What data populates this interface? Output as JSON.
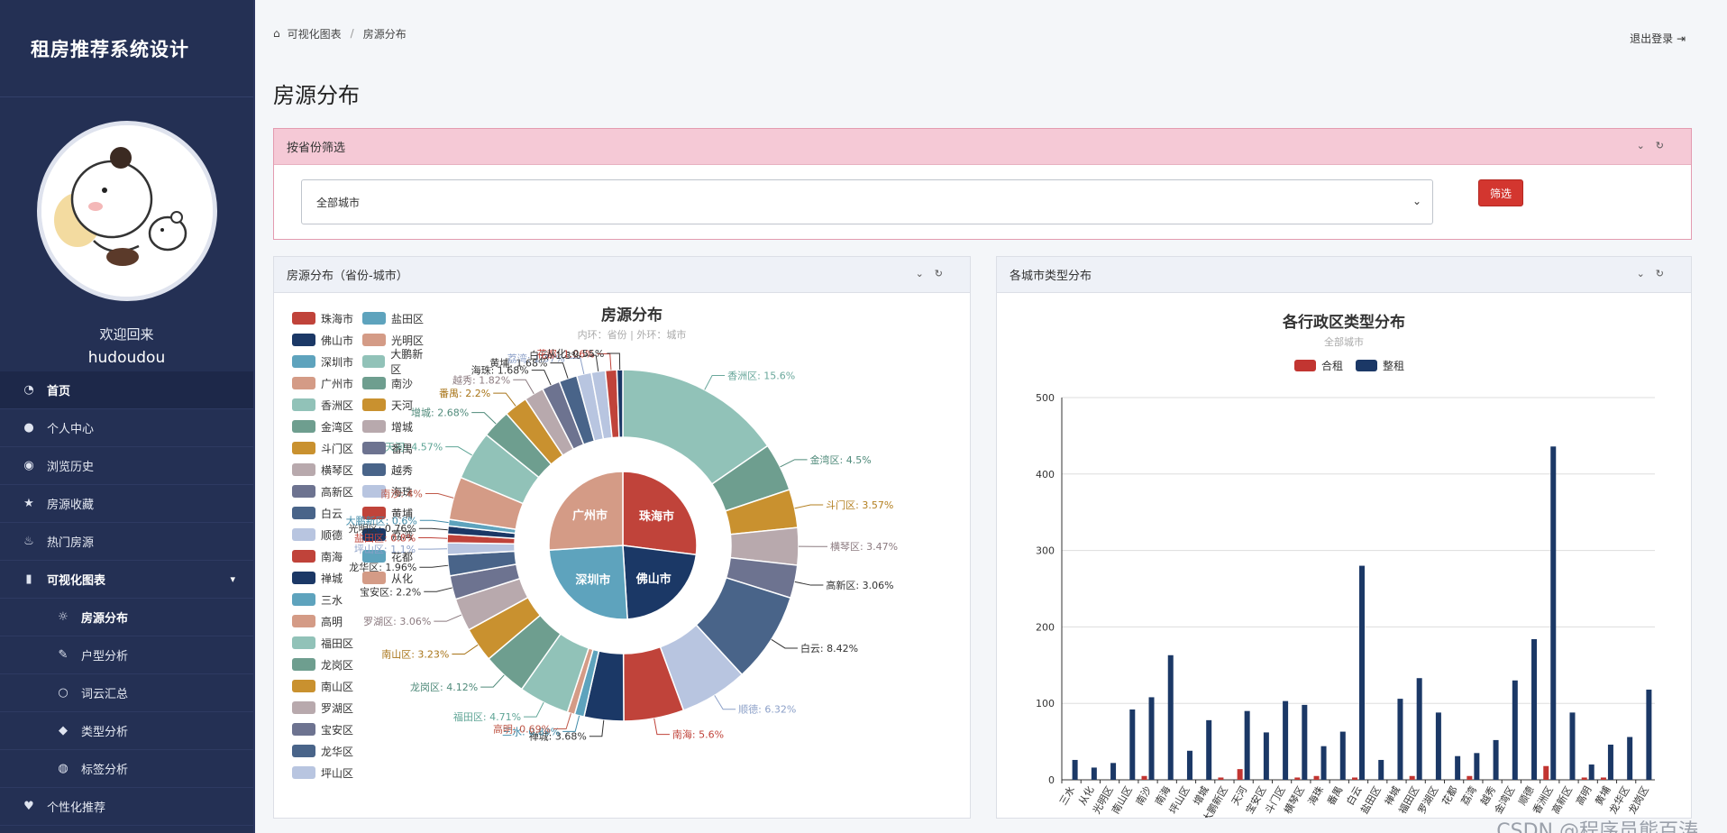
{
  "sidebar": {
    "brand": "租房推荐系统设计",
    "welcome": "欢迎回来",
    "username": "hudoudou",
    "menu": [
      {
        "label": "首页",
        "icon": "dashboard-icon"
      },
      {
        "label": "个人中心",
        "icon": "user-icon"
      },
      {
        "label": "浏览历史",
        "icon": "eye-icon"
      },
      {
        "label": "房源收藏",
        "icon": "star-icon"
      },
      {
        "label": "热门房源",
        "icon": "fire-icon"
      },
      {
        "label": "可视化图表",
        "icon": "bar-chart-icon"
      },
      {
        "label": "房源分布",
        "icon": "sun-icon"
      },
      {
        "label": "户型分析",
        "icon": "feather-icon"
      },
      {
        "label": "词云汇总",
        "icon": "bulb-icon"
      },
      {
        "label": "类型分析",
        "icon": "graduation-icon"
      },
      {
        "label": "标签分析",
        "icon": "globe-icon"
      },
      {
        "label": "个性化推荐",
        "icon": "heart-icon"
      }
    ]
  },
  "header": {
    "breadcrumb_1": "可视化图表",
    "breadcrumb_sep": "/",
    "breadcrumb_2": "房源分布",
    "logout": "退出登录",
    "page_title": "房源分布"
  },
  "filter": {
    "title": "按省份筛选",
    "select_value": "全部城市",
    "button": "筛选"
  },
  "cards": {
    "pie_title": "房源分布（省份-城市）",
    "bar_title": "各城市类型分布"
  },
  "colors": {
    "accent": "#d3362f",
    "sidebar": "#243054",
    "hezu": "#c23531",
    "zhengzu": "#1b3866"
  },
  "chart_data": [
    {
      "type": "pie",
      "title": "房源分布",
      "subtitle": "内环：省份 | 外环：城市",
      "inner": [
        {
          "name": "珠海市",
          "color": "#c0433a",
          "value": 27
        },
        {
          "name": "佛山市",
          "color": "#1b3866",
          "value": 22
        },
        {
          "name": "深圳市",
          "color": "#5ea3bd",
          "value": 25
        },
        {
          "name": "广州市",
          "color": "#d49b86",
          "value": 26
        }
      ],
      "outer": [
        {
          "name": "香洲区",
          "value": 15.6,
          "label": "香洲区: 15.6%",
          "color": "#91c2b8",
          "lcolor": "#6aa89c",
          "side": "r"
        },
        {
          "name": "金湾区",
          "value": 4.5,
          "label": "金湾区: 4.5%",
          "color": "#6e9e8f",
          "lcolor": "#4f8a7a",
          "side": "r"
        },
        {
          "name": "斗门区",
          "value": 3.57,
          "label": "斗门区: 3.57%",
          "color": "#c9912f",
          "lcolor": "#b37f1f",
          "side": "r"
        },
        {
          "name": "横琴区",
          "value": 3.47,
          "label": "横琴区: 3.47%",
          "color": "#b8a9ad",
          "lcolor": "#8c7b80",
          "side": "r"
        },
        {
          "name": "高新区",
          "value": 3.06,
          "label": "高新区: 3.06%",
          "color": "#6d7390",
          "lcolor": "#333333",
          "side": "r"
        },
        {
          "name": "白云",
          "value": 8.42,
          "label": "白云: 8.42%",
          "color": "#496489",
          "lcolor": "#333333",
          "side": "r"
        },
        {
          "name": "顺德",
          "value": 6.32,
          "label": "顺德: 6.32%",
          "color": "#b8c5e0",
          "lcolor": "#8ca0c8",
          "side": "r"
        },
        {
          "name": "南海",
          "value": 5.6,
          "label": "南海: 5.6%",
          "color": "#c0433a",
          "lcolor": "#c0433a",
          "side": "r"
        },
        {
          "name": "禅城",
          "value": 3.68,
          "label": "禅城: 3.68%",
          "color": "#1b3866",
          "lcolor": "#333333",
          "side": "l"
        },
        {
          "name": "三水",
          "value": 0.89,
          "label": "三水: 0.89%",
          "color": "#5ea3bd",
          "lcolor": "#3f8aa8",
          "side": "l"
        },
        {
          "name": "高明",
          "value": 0.69,
          "label": "高明: 0.69%",
          "color": "#d49b86",
          "lcolor": "#c05a4a",
          "side": "l"
        },
        {
          "name": "福田区",
          "value": 4.71,
          "label": "福田区: 4.71%",
          "color": "#91c2b8",
          "lcolor": "#5fa596",
          "side": "l"
        },
        {
          "name": "龙岗区",
          "value": 4.12,
          "label": "龙岗区: 4.12%",
          "color": "#6e9e8f",
          "lcolor": "#4f8a7a",
          "side": "l"
        },
        {
          "name": "南山区",
          "value": 3.23,
          "label": "南山区: 3.23%",
          "color": "#c9912f",
          "lcolor": "#a87418",
          "side": "l"
        },
        {
          "name": "罗湖区",
          "value": 3.06,
          "label": "罗湖区: 3.06%",
          "color": "#b8a9ad",
          "lcolor": "#8c7b80",
          "side": "l"
        },
        {
          "name": "宝安区",
          "value": 2.2,
          "label": "宝安区: 2.2%",
          "color": "#6d7390",
          "lcolor": "#333333",
          "side": "l"
        },
        {
          "name": "龙华区",
          "value": 1.96,
          "label": "龙华区: 1.96%",
          "color": "#496489",
          "lcolor": "#333333",
          "side": "l"
        },
        {
          "name": "坪山区",
          "value": 1.1,
          "label": "坪山区: 1.1%",
          "color": "#b8c5e0",
          "lcolor": "#8ca0c8",
          "side": "l"
        },
        {
          "name": "盐田区",
          "value": 0.8,
          "label": "盐田区: 0.8%",
          "color": "#c0433a",
          "lcolor": "#c0433a",
          "side": "l"
        },
        {
          "name": "光明区",
          "value": 0.76,
          "label": "光明区: 0.76%",
          "color": "#1b3866",
          "lcolor": "#333333",
          "side": "l"
        },
        {
          "name": "大鹏新区",
          "value": 0.6,
          "label": "大鹏新区: 0.6%",
          "color": "#5ea3bd",
          "lcolor": "#3f8aa8",
          "side": "l"
        },
        {
          "name": "南沙",
          "value": 4.0,
          "label": "南沙: 4%",
          "color": "#d49b86",
          "lcolor": "#c05a4a",
          "side": "l"
        },
        {
          "name": "天河",
          "value": 4.57,
          "label": "天河: 4.57%",
          "color": "#91c2b8",
          "lcolor": "#5fa596",
          "side": "l"
        },
        {
          "name": "增城",
          "value": 2.68,
          "label": "增城: 2.68%",
          "color": "#6e9e8f",
          "lcolor": "#4f8a7a",
          "side": "l"
        },
        {
          "name": "番禺",
          "value": 2.2,
          "label": "番禺: 2.2%",
          "color": "#c9912f",
          "lcolor": "#a87418",
          "side": "l"
        },
        {
          "name": "越秀",
          "value": 1.82,
          "label": "越秀: 1.82%",
          "color": "#b8a9ad",
          "lcolor": "#8c7b80",
          "side": "l"
        },
        {
          "name": "海珠",
          "value": 1.68,
          "label": "海珠: 1.68%",
          "color": "#6d7390",
          "lcolor": "#333333",
          "side": "l"
        },
        {
          "name": "黄埔",
          "value": 1.68,
          "label": "黄埔: 1.68%",
          "color": "#496489",
          "lcolor": "#333333",
          "side": "l"
        },
        {
          "name": "荔湾",
          "value": 1.37,
          "label": "荔湾: 1.37%",
          "color": "#b8c5e0",
          "lcolor": "#8ca0c8",
          "side": "l"
        },
        {
          "name": "白云",
          "value": 1.3,
          "label": "白云: 1.3%",
          "color": "#b8c5e0",
          "lcolor": "#333333",
          "side": "l"
        },
        {
          "name": "花都",
          "value": 1.06,
          "label": "花都: 1.06%",
          "color": "#c0433a",
          "lcolor": "#c0433a",
          "side": "l"
        },
        {
          "name": "从化",
          "value": 0.55,
          "label": "从化: 0.55%",
          "color": "#1b3866",
          "lcolor": "#333333",
          "side": "l"
        }
      ],
      "legend": [
        [
          "珠海市",
          "盐田区"
        ],
        [
          "佛山市",
          "光明区"
        ],
        [
          "深圳市",
          "大鹏新区"
        ],
        [
          "广州市",
          "南沙"
        ],
        [
          "香洲区",
          "天河"
        ],
        [
          "金湾区",
          "增城"
        ],
        [
          "斗门区",
          "番禺"
        ],
        [
          "横琴区",
          "越秀"
        ],
        [
          "高新区",
          "海珠"
        ],
        [
          "白云",
          "黄埔"
        ],
        [
          "顺德",
          "荔湾"
        ],
        [
          "南海",
          "花都"
        ],
        [
          "禅城",
          "从化"
        ],
        [
          "三水",
          ""
        ],
        [
          "高明",
          ""
        ],
        [
          "福田区",
          ""
        ],
        [
          "龙岗区",
          ""
        ],
        [
          "南山区",
          ""
        ],
        [
          "罗湖区",
          ""
        ],
        [
          "宝安区",
          ""
        ],
        [
          "龙华区",
          ""
        ],
        [
          "坪山区",
          ""
        ]
      ],
      "legend_colors": [
        "#c0433a",
        "#1b3866",
        "#5ea3bd",
        "#d49b86",
        "#91c2b8",
        "#6e9e8f",
        "#c9912f",
        "#b8a9ad",
        "#6d7390",
        "#496489",
        "#b8c5e0"
      ]
    },
    {
      "type": "bar",
      "title": "各行政区类型分布",
      "subtitle": "全部城市",
      "ylim": [
        0,
        500
      ],
      "yticks": [
        0,
        100,
        200,
        300,
        400,
        500
      ],
      "categories": [
        "三水",
        "从化",
        "光明区",
        "南山区",
        "南沙",
        "南海",
        "坪山区",
        "增城",
        "大鹏新区",
        "天河",
        "宝安区",
        "斗门区",
        "横琴区",
        "海珠",
        "番禺",
        "白云",
        "盐田区",
        "禅城",
        "福田区",
        "罗湖区",
        "花都",
        "荔湾",
        "越秀",
        "金湾区",
        "顺德",
        "香洲区",
        "高新区",
        "高明",
        "黄埔",
        "龙华区",
        "龙岗区"
      ],
      "series": [
        {
          "name": "合租",
          "color": "#c23531",
          "values": [
            0,
            0,
            0,
            0,
            5,
            0,
            0,
            0,
            3,
            14,
            0,
            0,
            3,
            5,
            0,
            3,
            0,
            0,
            5,
            0,
            0,
            5,
            0,
            0,
            0,
            18,
            0,
            3,
            3,
            0,
            0
          ]
        },
        {
          "name": "整租",
          "color": "#1b3866",
          "values": [
            26,
            16,
            22,
            92,
            108,
            163,
            38,
            78,
            0,
            90,
            62,
            103,
            98,
            44,
            63,
            280,
            26,
            106,
            133,
            88,
            31,
            35,
            52,
            130,
            184,
            436,
            88,
            20,
            46,
            56,
            118
          ]
        }
      ]
    }
  ],
  "watermark": "CSDN @程序员熊百涛"
}
